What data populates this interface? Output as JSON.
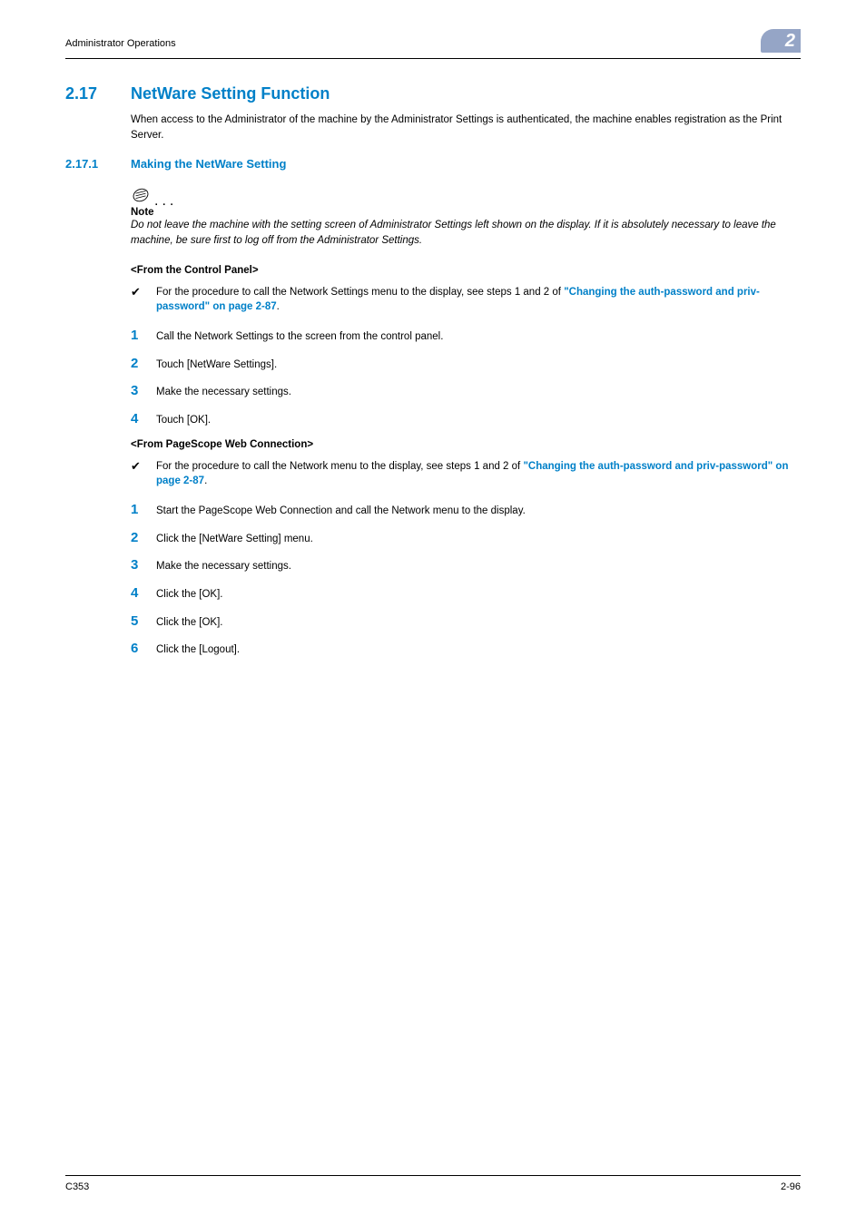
{
  "header": {
    "left": "Administrator Operations",
    "badge_number": "2",
    "badge_bg": "#95a5c6",
    "badge_fg": "#ffffff"
  },
  "section": {
    "number": "2.17",
    "title": "NetWare Setting Function",
    "intro": "When access to the Administrator of the machine by the Administrator Settings is authenticated, the machine enables registration as the Print Server."
  },
  "subsection": {
    "number": "2.17.1",
    "title": "Making the NetWare Setting"
  },
  "note": {
    "label": "Note",
    "body": "Do not leave the machine with the setting screen of Administrator Settings left shown on the display. If it is absolutely necessary to leave the machine, be sure first to log off from the Administrator Settings."
  },
  "panel": {
    "heading": "<From the Control Panel>",
    "prereq_pre": "For the procedure to call the Network Settings menu to the display, see steps 1 and 2 of ",
    "prereq_link": "\"Changing the auth-password and priv-password\" on page 2-87",
    "prereq_post": ".",
    "steps": [
      "Call the Network Settings to the screen from the control panel.",
      "Touch [NetWare Settings].",
      "Make the necessary settings.",
      "Touch [OK]."
    ]
  },
  "web": {
    "heading": "<From PageScope Web Connection>",
    "prereq_pre": "For the procedure to call the Network menu to the display, see steps 1 and 2 of ",
    "prereq_link": "\"Changing the auth-password and priv-password\" on page 2-87",
    "prereq_post": ".",
    "steps": [
      "Start the PageScope Web Connection and call the Network menu to the display.",
      "Click the [NetWare Setting] menu.",
      "Make the necessary settings.",
      "Click the [OK].",
      "Click the [OK].",
      "Click the [Logout]."
    ]
  },
  "footer": {
    "left": "C353",
    "right": "2-96"
  },
  "colors": {
    "accent": "#0080c8",
    "text": "#000000",
    "bg": "#ffffff"
  }
}
